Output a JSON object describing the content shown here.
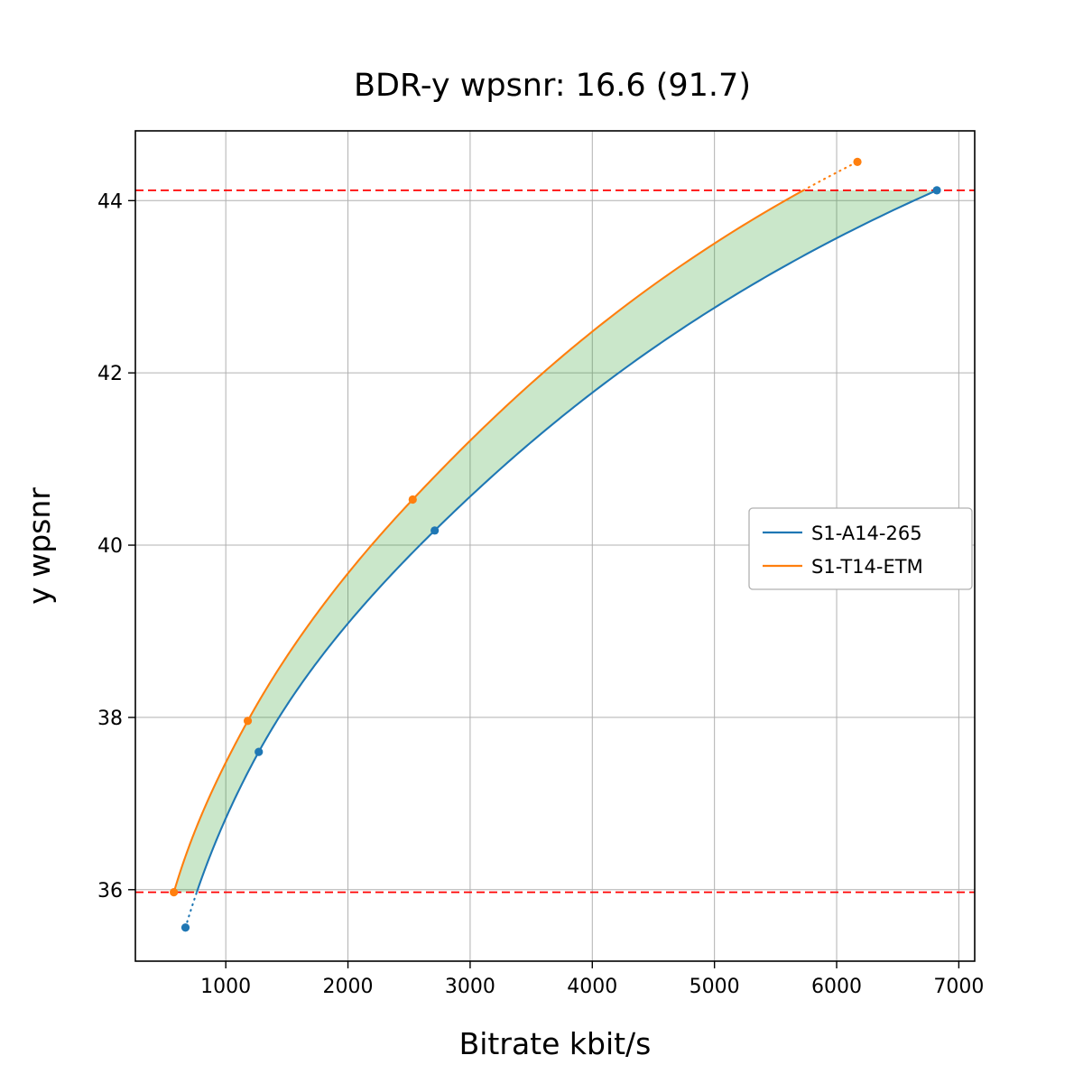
{
  "figure": {
    "title": "BDR-y wpsnr: 16.6 (91.7)"
  },
  "chart_data": {
    "type": "line",
    "title": "BDR-y wpsnr: 16.6 (91.7)",
    "xlabel": "Bitrate kbit/s",
    "ylabel": "y wpsnr",
    "xlim": [
      260,
      7130
    ],
    "ylim": [
      35.17,
      44.81
    ],
    "xticks": [
      1000,
      2000,
      3000,
      4000,
      5000,
      6000,
      7000
    ],
    "yticks": [
      36,
      38,
      40,
      42,
      44
    ],
    "grid": true,
    "grid_color": "#b0b0b0",
    "legend": {
      "location": "center right",
      "labels": [
        "S1-A14-265",
        "S1-T14-ETM"
      ]
    },
    "series": [
      {
        "name": "S1-A14-265",
        "color": "#1f77b4",
        "marker": "circle",
        "x": [
          670,
          1270,
          2710,
          6820
        ],
        "y": [
          35.56,
          37.6,
          40.17,
          44.12
        ]
      },
      {
        "name": "S1-T14-ETM",
        "color": "#ff7f0e",
        "marker": "circle",
        "x": [
          575,
          1180,
          2530,
          6170
        ],
        "y": [
          35.97,
          37.96,
          40.53,
          44.45
        ]
      }
    ],
    "overlap_region": {
      "y_low": 35.97,
      "y_high": 44.12,
      "line_color": "#ff0000",
      "line_style": "dashed",
      "fill_color": "#2ca02c",
      "fill_opacity": 0.25
    }
  }
}
